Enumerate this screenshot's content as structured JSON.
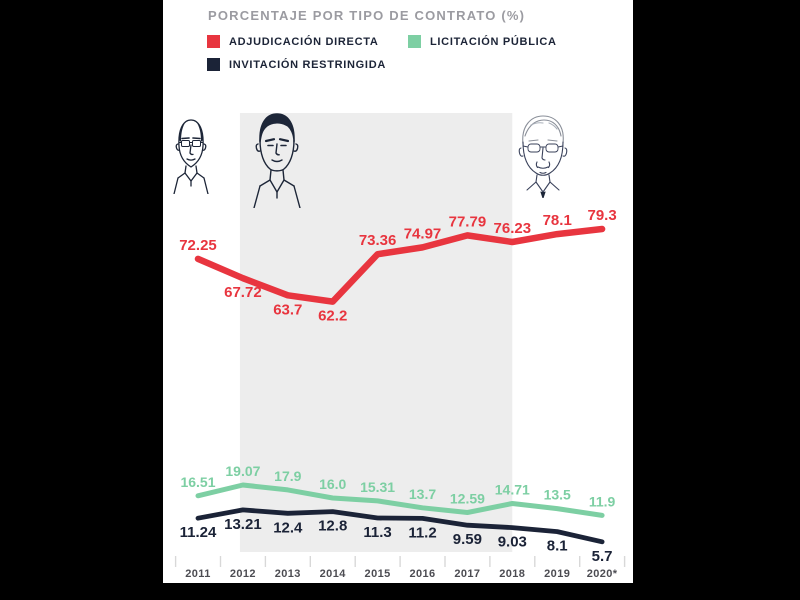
{
  "title": "PORCENTAJE POR TIPO DE CONTRATO (%)",
  "colors": {
    "red": "#e8353f",
    "green": "#7dcfa3",
    "navy": "#1b2337",
    "band": "#ededed",
    "title_gray": "#9b9ba1",
    "axis_label": "#4c4c52",
    "tick_gray": "#d8d8d8",
    "background_panel": "#ffffff",
    "background_outer": "#000000"
  },
  "legend": {
    "items": [
      {
        "label": "ADJUDICACIÓN DIRECTA",
        "color": "#e8353f"
      },
      {
        "label": "LICITACIÓN PÚBLICA",
        "color": "#7dcfa3"
      },
      {
        "label": "INVITACIÓN RESTRINGIDA",
        "color": "#1b2337"
      }
    ]
  },
  "portraits": [
    {
      "id": "felipe-calderon"
    },
    {
      "id": "enrique-pena-nieto"
    },
    {
      "id": "amlo"
    }
  ],
  "chart_data": {
    "type": "line",
    "x": [
      "2011",
      "2012",
      "2013",
      "2014",
      "2015",
      "2016",
      "2017",
      "2018",
      "2019",
      "2020*"
    ],
    "series": [
      {
        "name": "ADJUDICACIÓN DIRECTA",
        "color": "#e8353f",
        "values": [
          72.25,
          67.72,
          63.7,
          62.2,
          73.36,
          74.97,
          77.79,
          76.23,
          78.1,
          79.3
        ],
        "value_labels": [
          "72.25",
          "67.72",
          "63.7",
          "62.2",
          "73.36",
          "74.97",
          "77.79",
          "76.23",
          "78.1",
          "79.3"
        ],
        "label_side": [
          "above",
          "below",
          "below",
          "below",
          "above",
          "above",
          "above",
          "above",
          "above",
          "above"
        ]
      },
      {
        "name": "LICITACIÓN PÚBLICA",
        "color": "#7dcfa3",
        "values": [
          16.51,
          19.07,
          17.9,
          16.0,
          15.31,
          13.7,
          12.59,
          14.71,
          13.5,
          11.9
        ],
        "value_labels": [
          "16.51",
          "19.07",
          "17.9",
          "16.0",
          "15.31",
          "13.7",
          "12.59",
          "14.71",
          "13.5",
          "11.9"
        ],
        "label_side": [
          "above",
          "above",
          "above",
          "above",
          "above",
          "above",
          "above",
          "above",
          "above",
          "above"
        ]
      },
      {
        "name": "INVITACIÓN RESTRINGIDA",
        "color": "#1b2337",
        "values": [
          11.24,
          13.21,
          12.4,
          12.8,
          11.3,
          11.2,
          9.59,
          9.03,
          8.1,
          5.7
        ],
        "value_labels": [
          "11.24",
          "13.21",
          "12.4",
          "12.8",
          "11.3",
          "11.2",
          "9.59",
          "9.03",
          "8.1",
          "5.7"
        ],
        "label_side": [
          "below",
          "below",
          "below",
          "below",
          "below",
          "below",
          "below",
          "below",
          "below",
          "below"
        ]
      }
    ],
    "highlight_band": {
      "from": "2012",
      "to": "2018",
      "color": "#ededed"
    },
    "grid": false,
    "legend_position": "top",
    "y_axis_shown": false
  }
}
